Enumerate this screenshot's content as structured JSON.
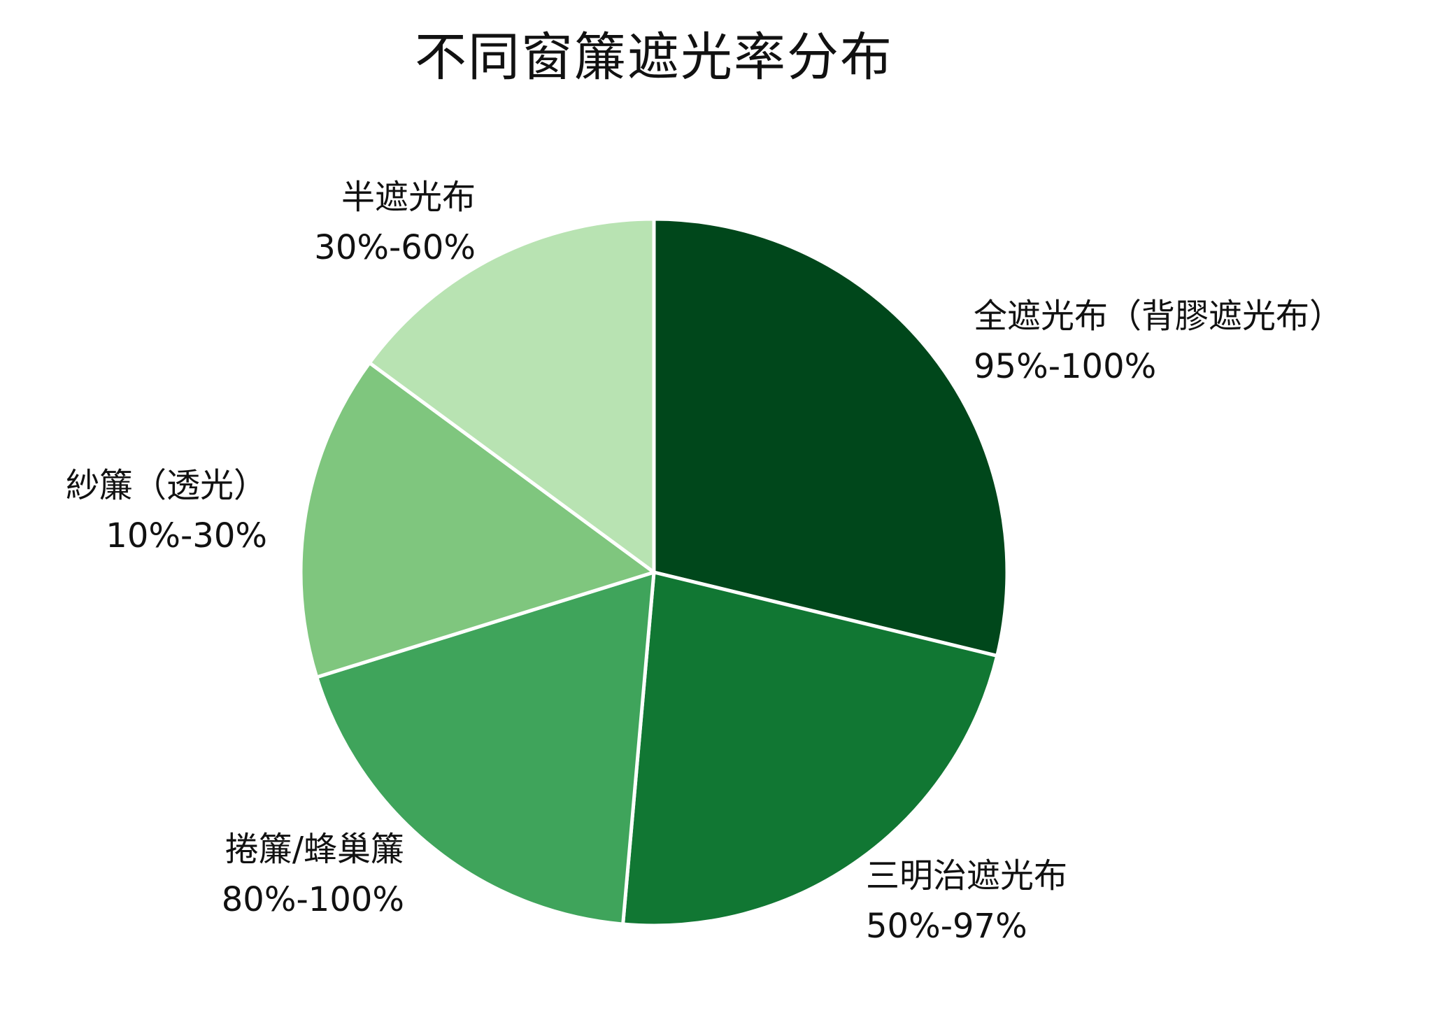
{
  "chart_data": {
    "type": "pie",
    "title": "不同窗簾遮光率分布",
    "slices": [
      {
        "name": "全遮光布（背膠遮光布）",
        "range": "95%-100%",
        "value": 28.8,
        "color": "#00471b"
      },
      {
        "name": "三明治遮光布",
        "range": "50%-97%",
        "value": 22.6,
        "color": "#117733"
      },
      {
        "name": "捲簾/蜂巢簾",
        "range": "80%-100%",
        "value": 18.8,
        "color": "#3fa45b"
      },
      {
        "name": "紗簾（透光）",
        "range": "10%-30%",
        "value": 14.9,
        "color": "#7fc67e"
      },
      {
        "name": "半遮光布",
        "range": "30%-60%",
        "value": 14.9,
        "color": "#b8e3b2"
      }
    ]
  }
}
